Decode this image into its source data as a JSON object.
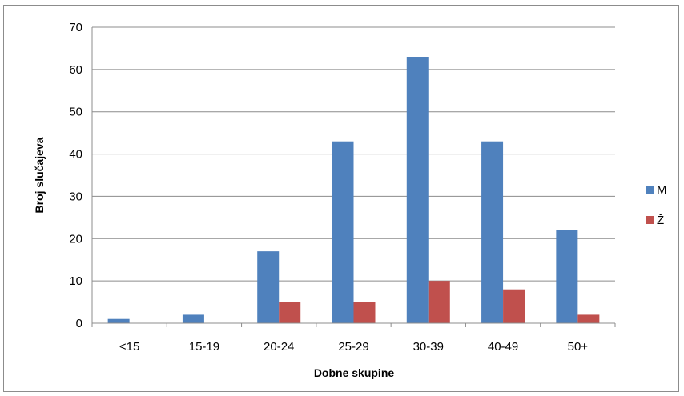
{
  "chart_data": {
    "type": "bar",
    "title": "",
    "xlabel": "Dobne skupine",
    "ylabel": "Broj slučajeva",
    "categories": [
      "<15",
      "15-19",
      "20-24",
      "25-29",
      "30-39",
      "40-49",
      "50+"
    ],
    "series": [
      {
        "name": "M",
        "color": "#4f81bd",
        "values": [
          1,
          2,
          17,
          43,
          63,
          43,
          22
        ]
      },
      {
        "name": "Ž",
        "color": "#c0504d",
        "values": [
          0,
          0,
          5,
          5,
          10,
          8,
          2
        ]
      }
    ],
    "ylim": [
      0,
      70
    ],
    "yticks": [
      0,
      10,
      20,
      30,
      40,
      50,
      60,
      70
    ],
    "grid": true,
    "legend": "right"
  }
}
